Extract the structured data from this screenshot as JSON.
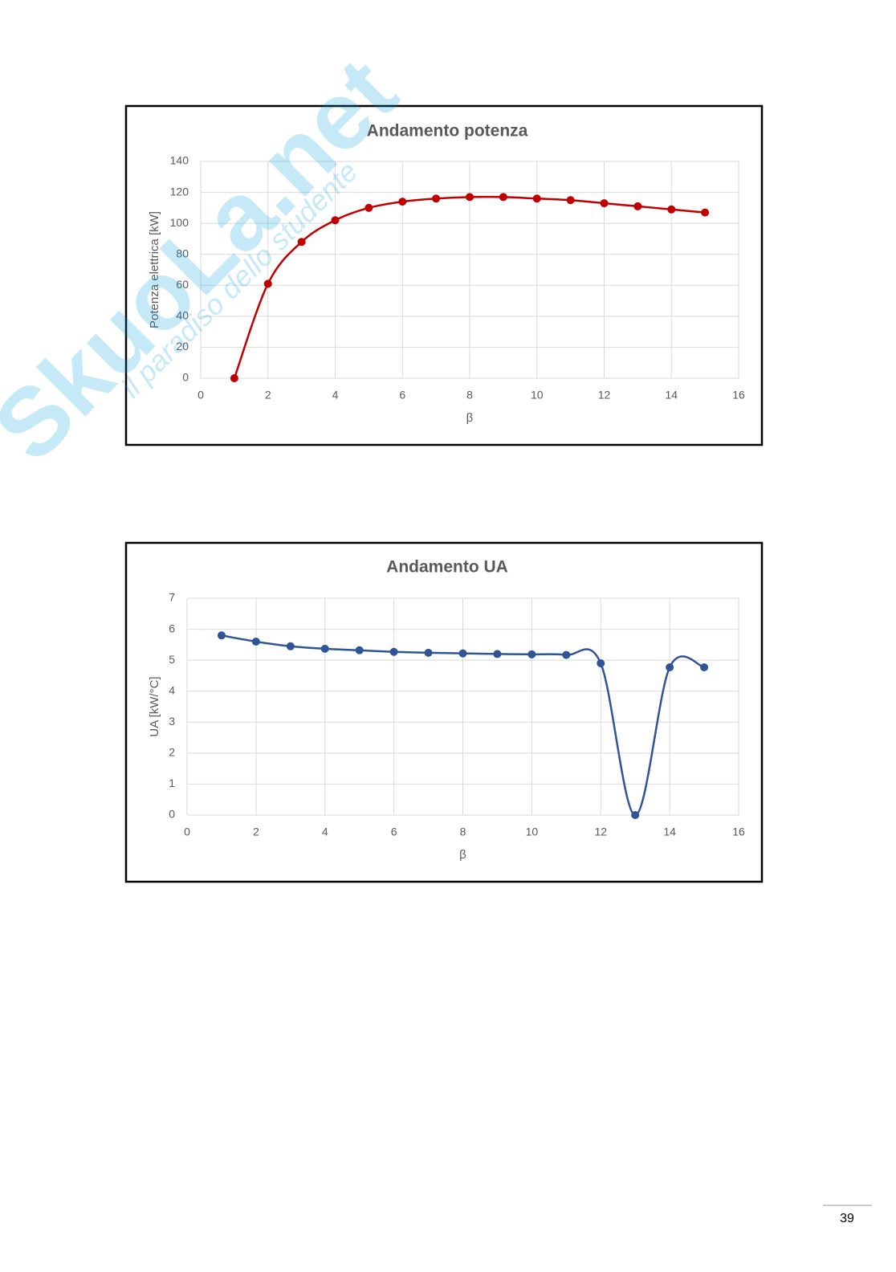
{
  "chart_data": [
    {
      "type": "line",
      "title": "Andamento potenza",
      "xlabel": "β",
      "ylabel": "Potenza elettrica [kW]",
      "x": [
        1,
        2,
        3,
        4,
        5,
        6,
        7,
        8,
        9,
        10,
        11,
        12,
        13,
        14,
        15
      ],
      "series": [
        {
          "color": "#c00000",
          "values": [
            0,
            61,
            88,
            102,
            110,
            114,
            116,
            117,
            117,
            116,
            115,
            113,
            111,
            109,
            107
          ]
        }
      ],
      "xlim": [
        0,
        16
      ],
      "xticks": [
        0,
        2,
        4,
        6,
        8,
        10,
        12,
        14,
        16
      ],
      "ylim": [
        0,
        140
      ],
      "yticks": [
        0,
        20,
        40,
        60,
        80,
        100,
        120,
        140
      ],
      "grid": true,
      "smooth": true
    },
    {
      "type": "line",
      "title": "Andamento UA",
      "xlabel": "β",
      "ylabel": "UA [kW/°C]",
      "x": [
        1,
        2,
        3,
        4,
        5,
        6,
        7,
        8,
        9,
        10,
        11,
        12,
        13,
        14,
        15
      ],
      "series": [
        {
          "color": "#2f5597",
          "values": [
            5.8,
            5.6,
            5.45,
            5.37,
            5.32,
            5.27,
            5.24,
            5.22,
            5.2,
            5.19,
            5.17,
            4.9,
            0,
            4.77,
            4.77
          ]
        }
      ],
      "xlim": [
        0,
        16
      ],
      "xticks": [
        0,
        2,
        4,
        6,
        8,
        10,
        12,
        14,
        16
      ],
      "ylim": [
        0,
        7
      ],
      "yticks": [
        0,
        1,
        2,
        3,
        4,
        5,
        6,
        7
      ],
      "grid": true,
      "smooth": true
    }
  ],
  "watermark": {
    "logo": "SkuoLa.net",
    "tagline": "il paradiso dello studente"
  },
  "page_number": "39"
}
